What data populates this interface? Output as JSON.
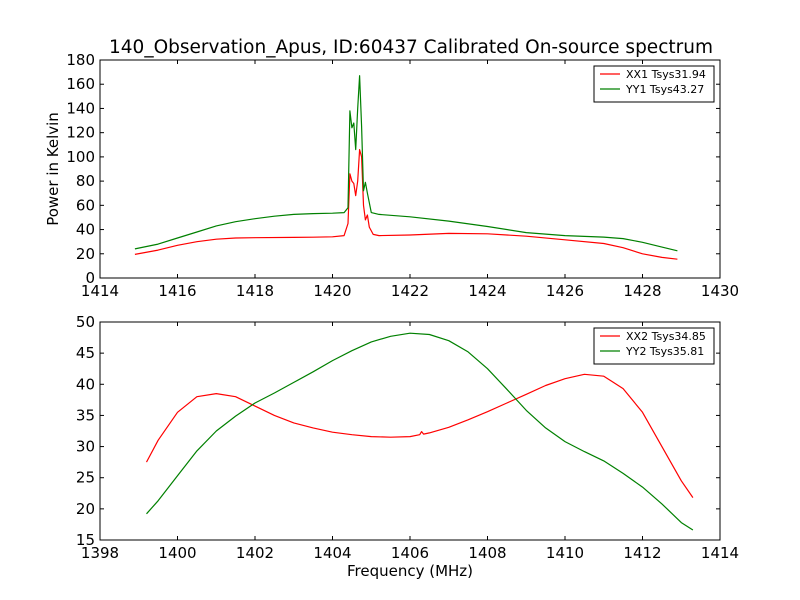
{
  "figure_title": "140_Observation_Apus, ID:60437 Calibrated On-source spectrum",
  "chart_data": [
    {
      "type": "line",
      "xlabel": "",
      "ylabel": "Power in Kelvin",
      "xlim": [
        1414,
        1430
      ],
      "ylim": [
        0,
        180
      ],
      "xticks": [
        1414,
        1416,
        1418,
        1420,
        1422,
        1424,
        1426,
        1428,
        1430
      ],
      "yticks": [
        0,
        20,
        40,
        60,
        80,
        100,
        120,
        140,
        160,
        180
      ],
      "legend_position": "top-right",
      "series": [
        {
          "name": "XX1 Tsys31.94",
          "color": "#ff0000",
          "points": [
            [
              1414.9,
              19.5
            ],
            [
              1415.5,
              23
            ],
            [
              1416,
              27
            ],
            [
              1416.5,
              30
            ],
            [
              1417,
              32
            ],
            [
              1417.5,
              33
            ],
            [
              1418,
              33.3
            ],
            [
              1419,
              33.5
            ],
            [
              1419.5,
              33.7
            ],
            [
              1420,
              34
            ],
            [
              1420.3,
              35
            ],
            [
              1420.4,
              45
            ],
            [
              1420.45,
              86
            ],
            [
              1420.5,
              80
            ],
            [
              1420.55,
              78
            ],
            [
              1420.6,
              68
            ],
            [
              1420.65,
              80
            ],
            [
              1420.7,
              106
            ],
            [
              1420.75,
              100
            ],
            [
              1420.8,
              60
            ],
            [
              1420.85,
              48
            ],
            [
              1420.9,
              52
            ],
            [
              1420.95,
              42
            ],
            [
              1421.05,
              36
            ],
            [
              1421.2,
              35
            ],
            [
              1422,
              35.5
            ],
            [
              1423,
              36.8
            ],
            [
              1424,
              36.5
            ],
            [
              1425,
              34.5
            ],
            [
              1426,
              31.5
            ],
            [
              1427,
              28.5
            ],
            [
              1427.5,
              25
            ],
            [
              1428,
              20
            ],
            [
              1428.5,
              17
            ],
            [
              1428.9,
              15.5
            ]
          ]
        },
        {
          "name": "YY1 Tsys43.27",
          "color": "#008000",
          "points": [
            [
              1414.9,
              24
            ],
            [
              1415.5,
              28
            ],
            [
              1416,
              33
            ],
            [
              1416.5,
              38
            ],
            [
              1417,
              43
            ],
            [
              1417.5,
              46.5
            ],
            [
              1418,
              49
            ],
            [
              1418.5,
              51
            ],
            [
              1419,
              52.5
            ],
            [
              1419.5,
              53.2
            ],
            [
              1420,
              53.5
            ],
            [
              1420.3,
              54
            ],
            [
              1420.4,
              58
            ],
            [
              1420.45,
              138
            ],
            [
              1420.5,
              124
            ],
            [
              1420.55,
              128
            ],
            [
              1420.6,
              106
            ],
            [
              1420.65,
              140
            ],
            [
              1420.7,
              167
            ],
            [
              1420.75,
              125
            ],
            [
              1420.8,
              72
            ],
            [
              1420.85,
              79
            ],
            [
              1420.9,
              70
            ],
            [
              1421,
              54
            ],
            [
              1421.2,
              52.5
            ],
            [
              1422,
              50.5
            ],
            [
              1423,
              47
            ],
            [
              1424,
              42.5
            ],
            [
              1425,
              37.5
            ],
            [
              1426,
              35
            ],
            [
              1427,
              33.8
            ],
            [
              1427.5,
              32.5
            ],
            [
              1428,
              29.5
            ],
            [
              1428.5,
              25.5
            ],
            [
              1428.9,
              22.5
            ]
          ]
        }
      ]
    },
    {
      "type": "line",
      "xlabel": "Frequency (MHz)",
      "ylabel": "",
      "xlim": [
        1398,
        1414
      ],
      "ylim": [
        15,
        50
      ],
      "xticks": [
        1398,
        1400,
        1402,
        1404,
        1406,
        1408,
        1410,
        1412,
        1414
      ],
      "yticks": [
        15,
        20,
        25,
        30,
        35,
        40,
        45,
        50
      ],
      "legend_position": "top-right",
      "series": [
        {
          "name": "XX2 Tsys34.85",
          "color": "#ff0000",
          "points": [
            [
              1399.2,
              27.5
            ],
            [
              1399.5,
              31
            ],
            [
              1400,
              35.5
            ],
            [
              1400.5,
              38
            ],
            [
              1401,
              38.5
            ],
            [
              1401.5,
              38
            ],
            [
              1402,
              36.5
            ],
            [
              1402.5,
              35
            ],
            [
              1403,
              33.8
            ],
            [
              1403.5,
              33
            ],
            [
              1404,
              32.3
            ],
            [
              1404.5,
              31.9
            ],
            [
              1405,
              31.6
            ],
            [
              1405.5,
              31.5
            ],
            [
              1406,
              31.6
            ],
            [
              1406.25,
              31.9
            ],
            [
              1406.3,
              32.4
            ],
            [
              1406.35,
              32.0
            ],
            [
              1406.5,
              32.2
            ],
            [
              1407,
              33.1
            ],
            [
              1407.5,
              34.3
            ],
            [
              1408,
              35.6
            ],
            [
              1408.5,
              37
            ],
            [
              1409,
              38.4
            ],
            [
              1409.5,
              39.8
            ],
            [
              1410,
              40.9
            ],
            [
              1410.5,
              41.6
            ],
            [
              1411,
              41.3
            ],
            [
              1411.5,
              39.3
            ],
            [
              1412,
              35.5
            ],
            [
              1412.5,
              30
            ],
            [
              1413,
              24.5
            ],
            [
              1413.3,
              21.8
            ]
          ]
        },
        {
          "name": "YY2 Tsys35.81",
          "color": "#008000",
          "points": [
            [
              1399.2,
              19.2
            ],
            [
              1399.5,
              21.3
            ],
            [
              1400,
              25.3
            ],
            [
              1400.5,
              29.3
            ],
            [
              1401,
              32.5
            ],
            [
              1401.5,
              34.9
            ],
            [
              1402,
              37
            ],
            [
              1402.5,
              38.6
            ],
            [
              1403,
              40.3
            ],
            [
              1403.5,
              42
            ],
            [
              1404,
              43.8
            ],
            [
              1404.5,
              45.4
            ],
            [
              1405,
              46.8
            ],
            [
              1405.5,
              47.7
            ],
            [
              1406,
              48.2
            ],
            [
              1406.5,
              48
            ],
            [
              1407,
              47
            ],
            [
              1407.5,
              45.2
            ],
            [
              1408,
              42.5
            ],
            [
              1408.5,
              39.2
            ],
            [
              1409,
              35.8
            ],
            [
              1409.5,
              33
            ],
            [
              1410,
              30.8
            ],
            [
              1410.5,
              29.2
            ],
            [
              1411,
              27.7
            ],
            [
              1411.5,
              25.7
            ],
            [
              1412,
              23.5
            ],
            [
              1412.5,
              20.8
            ],
            [
              1413,
              17.8
            ],
            [
              1413.3,
              16.6
            ]
          ]
        }
      ]
    }
  ]
}
